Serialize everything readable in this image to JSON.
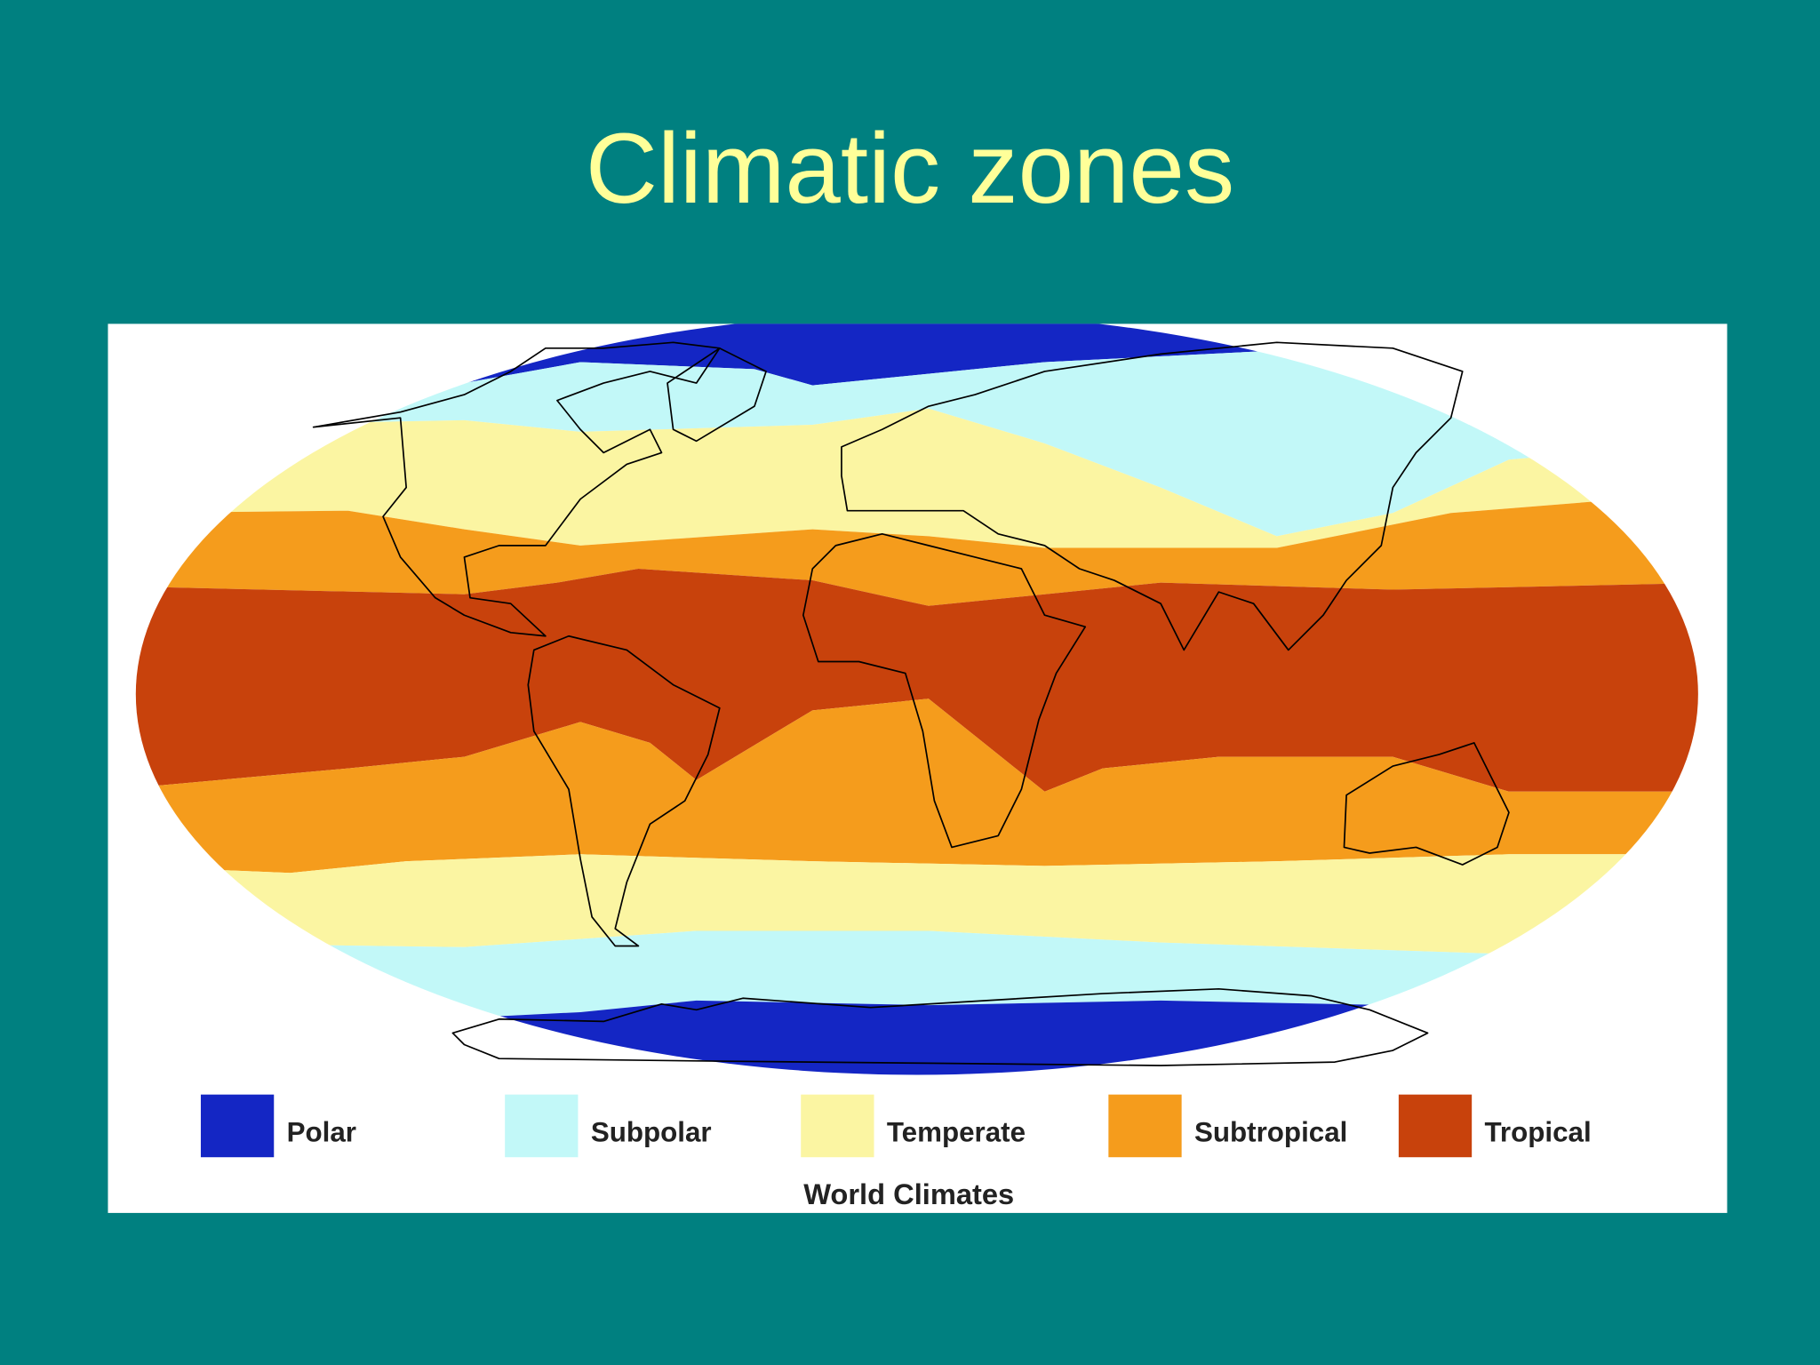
{
  "title": "Climatic zones",
  "legend": [
    {
      "name": "Polar",
      "color": "#1426c4"
    },
    {
      "name": "Subpolar",
      "color": "#c2f8f8"
    },
    {
      "name": "Temperate",
      "color": "#fbf5a2"
    },
    {
      "name": "Subtropical",
      "color": "#f59c1c"
    },
    {
      "name": "Tropical",
      "color": "#c8420c"
    }
  ],
  "caption": "World Climates"
}
